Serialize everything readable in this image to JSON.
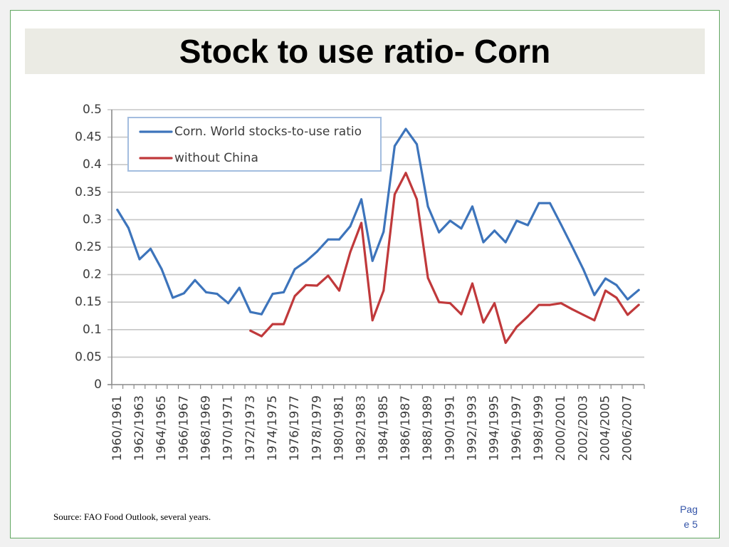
{
  "slide": {
    "title": "Stock to use ratio- Corn",
    "source": "Source: FAO Food Outlook, several years.",
    "page_number": "Page 5"
  },
  "chart_data": {
    "type": "line",
    "x": [
      1960,
      1961,
      1962,
      1963,
      1964,
      1965,
      1966,
      1967,
      1968,
      1969,
      1970,
      1971,
      1972,
      1973,
      1974,
      1975,
      1976,
      1977,
      1978,
      1979,
      1980,
      1981,
      1982,
      1983,
      1984,
      1985,
      1986,
      1987,
      1988,
      1989,
      1990,
      1991,
      1992,
      1993,
      1994,
      1995,
      1996,
      1997,
      1998,
      1999,
      2000,
      2001,
      2002,
      2003,
      2004,
      2005,
      2006,
      2007
    ],
    "tick_labels": [
      "1960/1961",
      "1962/1963",
      "1964/1965",
      "1966/1967",
      "1968/1969",
      "1970/1971",
      "1972/1973",
      "1974/1975",
      "1976/1977",
      "1978/1979",
      "1980/1981",
      "1982/1983",
      "1984/1985",
      "1986/1987",
      "1988/1989",
      "1990/1991",
      "1992/1993",
      "1994/1995",
      "1996/1997",
      "1998/1999",
      "2000/2001",
      "2002/2003",
      "2004/2005",
      "2006/2007"
    ],
    "y_ticks": [
      0,
      0.05,
      0.1,
      0.15,
      0.2,
      0.25,
      0.3,
      0.35,
      0.4,
      0.45,
      0.5
    ],
    "ylim": [
      0,
      0.5
    ],
    "grid": true,
    "legend_position": "top-left",
    "series": [
      {
        "name": "Corn. World stocks-to-use ratio",
        "color": "#3d74bb",
        "values": [
          0.318,
          0.285,
          0.228,
          0.247,
          0.21,
          0.158,
          0.166,
          0.19,
          0.168,
          0.165,
          0.148,
          0.176,
          0.132,
          0.128,
          0.165,
          0.168,
          0.21,
          0.224,
          0.242,
          0.264,
          0.264,
          0.288,
          0.337,
          0.225,
          0.278,
          0.434,
          0.465,
          0.437,
          0.324,
          0.277,
          0.298,
          0.284,
          0.324,
          0.259,
          0.28,
          0.259,
          0.298,
          0.29,
          0.33,
          0.33,
          0.291,
          0.251,
          0.21,
          0.163,
          0.193,
          0.181,
          0.155,
          0.172
        ]
      },
      {
        "name": "without China",
        "color": "#c0393b",
        "values": [
          null,
          null,
          null,
          null,
          null,
          null,
          null,
          null,
          null,
          null,
          null,
          null,
          0.098,
          0.088,
          0.11,
          0.11,
          0.161,
          0.181,
          0.18,
          0.198,
          0.171,
          0.241,
          0.294,
          0.117,
          0.171,
          0.346,
          0.385,
          0.337,
          0.194,
          0.15,
          0.148,
          0.128,
          0.184,
          0.113,
          0.148,
          0.076,
          0.105,
          0.124,
          0.145,
          0.145,
          0.148,
          0.137,
          0.127,
          0.117,
          0.171,
          0.158,
          0.127,
          0.145
        ]
      }
    ]
  }
}
